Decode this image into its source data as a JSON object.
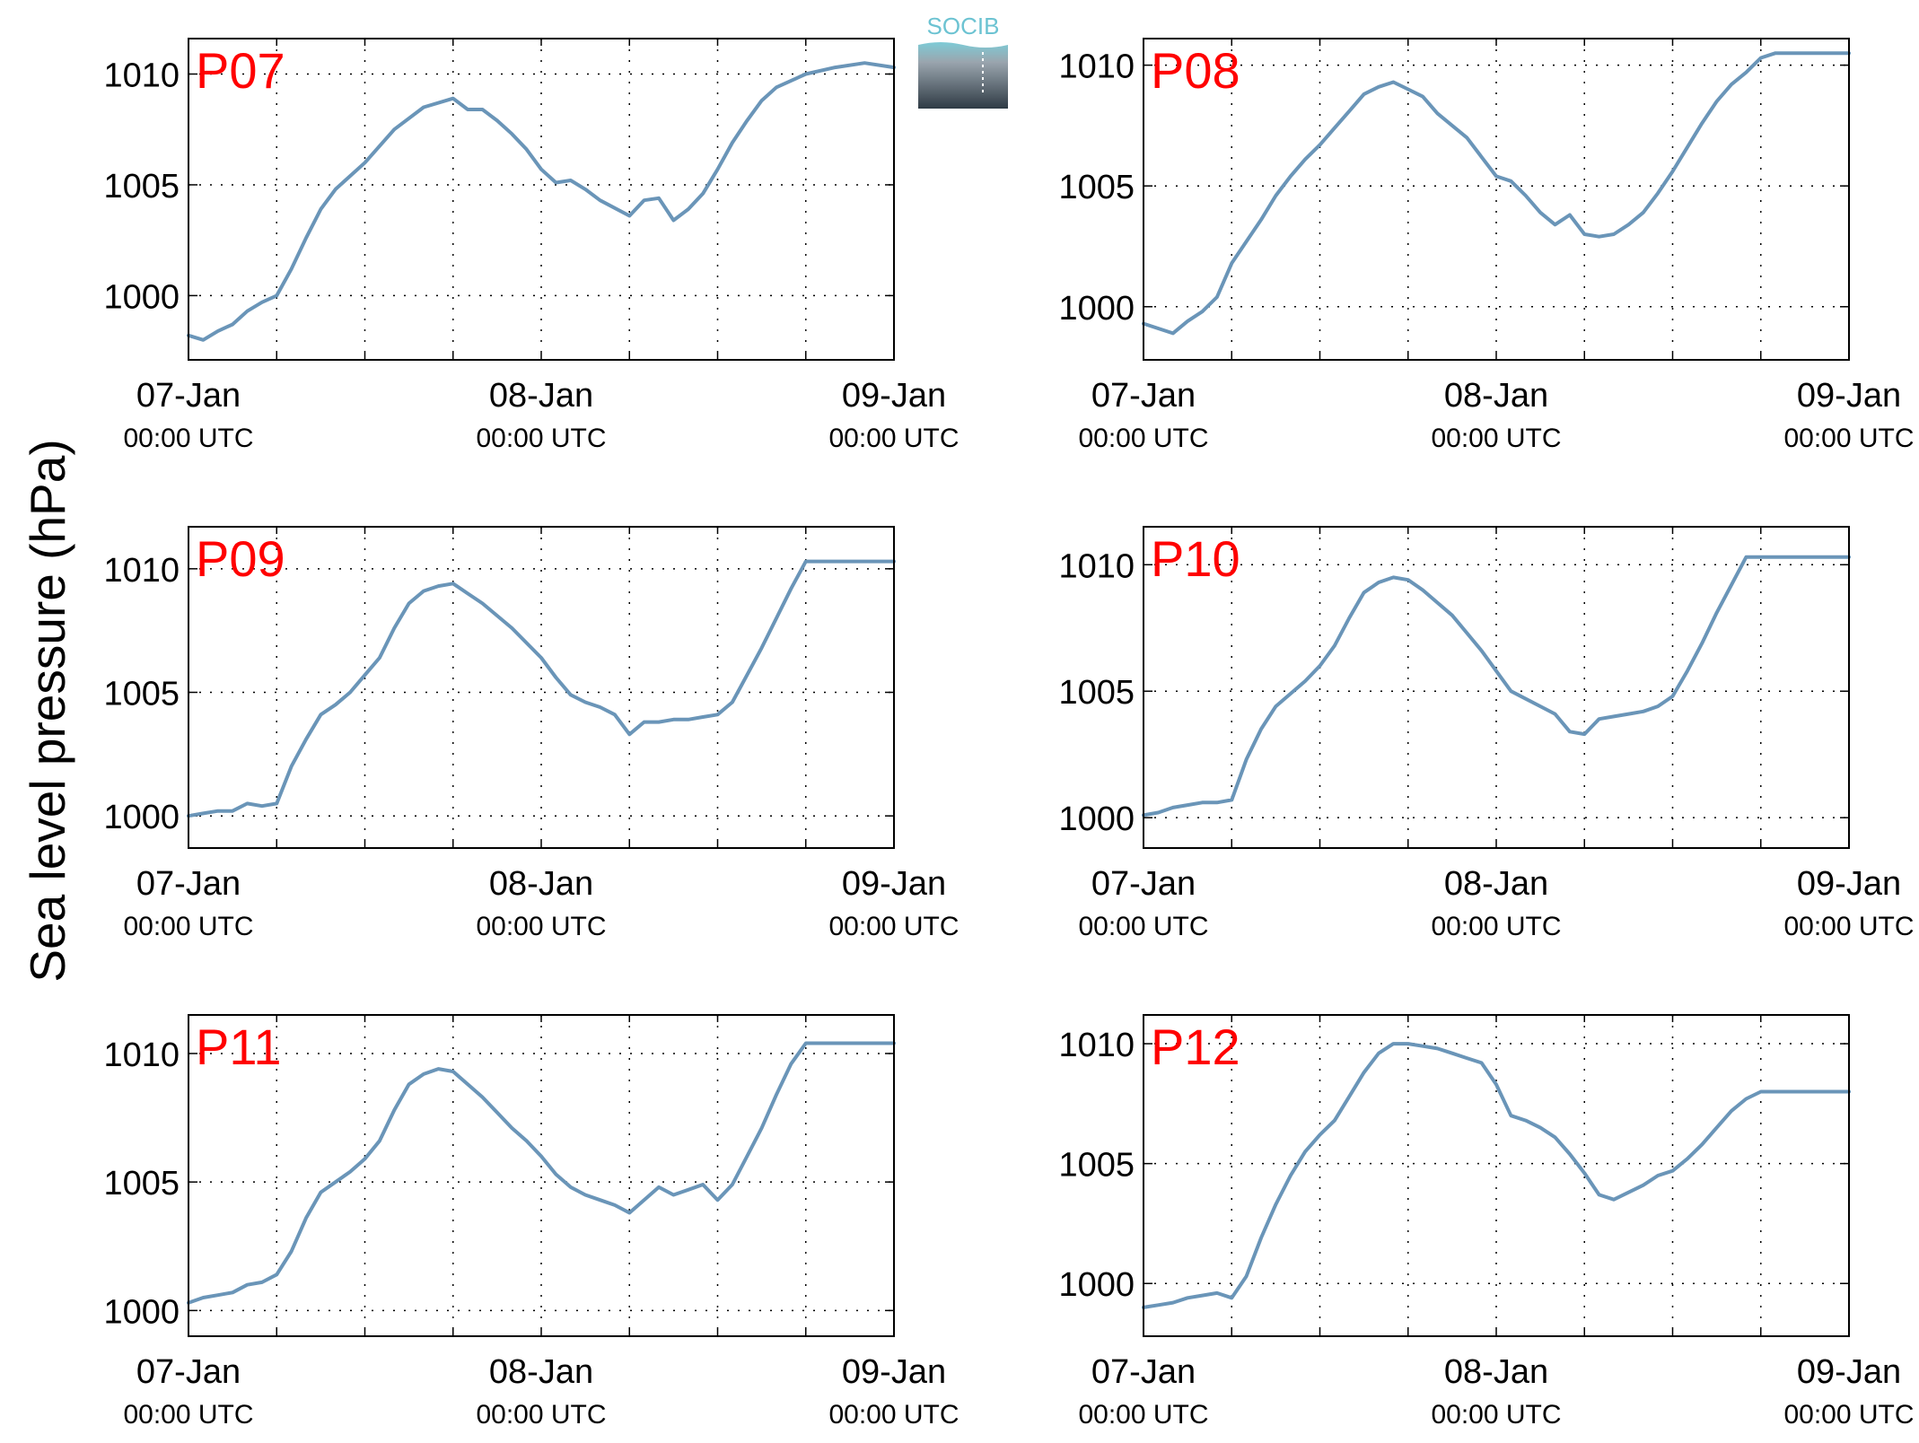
{
  "figure": {
    "ylabel": "Sea level pressure (hPa)",
    "logo_text": "SOCIB",
    "line_color": "#6a95b8",
    "label_color": "#ff0000"
  },
  "chart_data": [
    {
      "type": "line",
      "panel_label": "P07",
      "x_ticks": [
        "07-Jan\n00:00 UTC",
        "08-Jan\n00:00 UTC",
        "09-Jan\n00:00 UTC"
      ],
      "xlim_hours": [
        0,
        48
      ],
      "ylim": [
        997.1,
        1011.6
      ],
      "y_ticks": [
        1000,
        1005,
        1010
      ],
      "grid": true,
      "x_hours": [
        0,
        1,
        2,
        3,
        4,
        5,
        6,
        7,
        8,
        9,
        10,
        11,
        12,
        14,
        16,
        18,
        19,
        20,
        21,
        22,
        23,
        24,
        25,
        26,
        27,
        28,
        30,
        31,
        32,
        33,
        34,
        35,
        36,
        36.5,
        37,
        38,
        39,
        40,
        42,
        44,
        46,
        48
      ],
      "values": [
        998.2,
        998.0,
        998.4,
        998.7,
        999.3,
        999.7,
        1000.0,
        1001.2,
        1002.6,
        1003.9,
        1004.8,
        1005.4,
        1006.0,
        1007.5,
        1008.5,
        1008.9,
        1008.4,
        1008.4,
        1007.9,
        1007.3,
        1006.6,
        1005.7,
        1005.1,
        1005.2,
        1004.8,
        1004.3,
        1003.6,
        1004.3,
        1004.4,
        1003.4,
        1003.9,
        1004.6,
        1005.7,
        1006.3,
        1006.9,
        1007.9,
        1008.8,
        1009.4,
        1010.0,
        1010.3,
        1010.5,
        1010.3
      ]
    },
    {
      "type": "line",
      "panel_label": "P08",
      "x_ticks": [
        "07-Jan\n00:00 UTC",
        "08-Jan\n00:00 UTC",
        "09-Jan\n00:00 UTC"
      ],
      "xlim_hours": [
        0,
        48
      ],
      "ylim": [
        997.8,
        1011.1
      ],
      "y_ticks": [
        1000,
        1005,
        1010
      ],
      "grid": true,
      "x_hours": [
        0,
        1,
        2,
        3,
        4,
        5,
        6,
        7,
        8,
        9,
        10,
        11,
        12,
        13,
        14,
        15,
        16,
        17,
        18,
        19,
        20,
        21,
        22,
        23,
        24,
        25,
        26,
        27,
        28,
        29,
        30,
        31,
        32,
        33,
        34,
        35,
        36,
        37,
        38,
        39,
        40,
        41,
        42,
        43,
        44,
        45,
        46,
        47,
        48
      ],
      "values": [
        999.3,
        999.1,
        998.9,
        999.4,
        999.8,
        1000.4,
        1001.8,
        1002.7,
        1003.6,
        1004.6,
        1005.4,
        1006.1,
        1006.7,
        1007.4,
        1008.1,
        1008.8,
        1009.1,
        1009.3,
        1009.0,
        1008.7,
        1008.0,
        1007.5,
        1007.0,
        1006.2,
        1005.4,
        1005.2,
        1004.6,
        1003.9,
        1003.4,
        1003.8,
        1003.0,
        1002.9,
        1003.0,
        1003.4,
        1003.9,
        1004.7,
        1005.6,
        1006.6,
        1007.6,
        1008.5,
        1009.2,
        1009.7,
        1010.3,
        1010.5,
        1010.5,
        1010.5,
        1010.5,
        1010.5,
        1010.5
      ]
    },
    {
      "type": "line",
      "panel_label": "P09",
      "x_ticks": [
        "07-Jan\n00:00 UTC",
        "08-Jan\n00:00 UTC",
        "09-Jan\n00:00 UTC"
      ],
      "xlim_hours": [
        0,
        48
      ],
      "ylim": [
        998.7,
        1011.7
      ],
      "y_ticks": [
        1000,
        1005,
        1010
      ],
      "grid": true,
      "x_hours": [
        0,
        1,
        2,
        3,
        4,
        5,
        6,
        7,
        8,
        9,
        10,
        11,
        12,
        13,
        14,
        15,
        16,
        17,
        18,
        19,
        20,
        21,
        22,
        23,
        24,
        25,
        26,
        27,
        28,
        29,
        30,
        31,
        32,
        33,
        34,
        35,
        36,
        37,
        38,
        39,
        40,
        41,
        42,
        43,
        44,
        45,
        46,
        47,
        48
      ],
      "values": [
        1000.0,
        1000.1,
        1000.2,
        1000.2,
        1000.5,
        1000.4,
        1000.5,
        1002.0,
        1003.1,
        1004.1,
        1004.5,
        1005.0,
        1005.7,
        1006.4,
        1007.6,
        1008.6,
        1009.1,
        1009.3,
        1009.4,
        1009.0,
        1008.6,
        1008.1,
        1007.6,
        1007.0,
        1006.4,
        1005.6,
        1004.9,
        1004.6,
        1004.4,
        1004.1,
        1003.3,
        1003.8,
        1003.8,
        1003.9,
        1003.9,
        1004.0,
        1004.1,
        1004.6,
        1005.7,
        1006.8,
        1008.0,
        1009.2,
        1010.3,
        1010.3,
        1010.3,
        1010.3,
        1010.3,
        1010.3,
        1010.3
      ]
    },
    {
      "type": "line",
      "panel_label": "P10",
      "x_ticks": [
        "07-Jan\n00:00 UTC",
        "08-Jan\n00:00 UTC",
        "09-Jan\n00:00 UTC"
      ],
      "xlim_hours": [
        0,
        48
      ],
      "ylim": [
        998.8,
        1011.5
      ],
      "y_ticks": [
        1000,
        1005,
        1010
      ],
      "grid": true,
      "x_hours": [
        0,
        1,
        2,
        3,
        4,
        5,
        6,
        7,
        8,
        9,
        10,
        11,
        12,
        13,
        14,
        15,
        16,
        17,
        18,
        19,
        20,
        21,
        22,
        23,
        24,
        25,
        26,
        27,
        28,
        29,
        30,
        31,
        32,
        33,
        34,
        35,
        36,
        37,
        38,
        39,
        40,
        41,
        42,
        43,
        44,
        45,
        46,
        47,
        48
      ],
      "values": [
        1000.1,
        1000.2,
        1000.4,
        1000.5,
        1000.6,
        1000.6,
        1000.7,
        1002.3,
        1003.5,
        1004.4,
        1004.9,
        1005.4,
        1006.0,
        1006.8,
        1007.9,
        1008.9,
        1009.3,
        1009.5,
        1009.4,
        1009.0,
        1008.5,
        1008.0,
        1007.3,
        1006.6,
        1005.8,
        1005.0,
        1004.7,
        1004.4,
        1004.1,
        1003.4,
        1003.3,
        1003.9,
        1004.0,
        1004.1,
        1004.2,
        1004.4,
        1004.8,
        1005.8,
        1006.9,
        1008.1,
        1009.2,
        1010.3,
        1010.3,
        1010.3,
        1010.3,
        1010.3,
        1010.3,
        1010.3,
        1010.3
      ]
    },
    {
      "type": "line",
      "panel_label": "P11",
      "x_ticks": [
        "07-Jan\n00:00 UTC",
        "08-Jan\n00:00 UTC",
        "09-Jan\n00:00 UTC"
      ],
      "xlim_hours": [
        0,
        48
      ],
      "ylim": [
        999.0,
        1011.5
      ],
      "y_ticks": [
        1000,
        1005,
        1010
      ],
      "grid": true,
      "x_hours": [
        0,
        1,
        2,
        3,
        4,
        5,
        6,
        7,
        8,
        9,
        10,
        11,
        12,
        13,
        14,
        15,
        16,
        17,
        18,
        19,
        20,
        21,
        22,
        23,
        24,
        25,
        26,
        27,
        28,
        29,
        30,
        31,
        32,
        33,
        34,
        35,
        36,
        37,
        38,
        39,
        40,
        41,
        42,
        43,
        44,
        45,
        46,
        47,
        48
      ],
      "values": [
        1000.3,
        1000.5,
        1000.6,
        1000.7,
        1001.0,
        1001.1,
        1001.4,
        1002.3,
        1003.6,
        1004.6,
        1005.0,
        1005.4,
        1005.9,
        1006.6,
        1007.8,
        1008.8,
        1009.2,
        1009.4,
        1009.3,
        1008.8,
        1008.3,
        1007.7,
        1007.1,
        1006.6,
        1006.0,
        1005.3,
        1004.8,
        1004.5,
        1004.3,
        1004.1,
        1003.8,
        1004.3,
        1004.8,
        1004.5,
        1004.7,
        1004.9,
        1004.3,
        1004.9,
        1006.0,
        1007.1,
        1008.4,
        1009.6,
        1010.4,
        1010.4,
        1010.4,
        1010.4,
        1010.4,
        1010.4,
        1010.4
      ]
    },
    {
      "type": "line",
      "panel_label": "P12",
      "x_ticks": [
        "07-Jan\n00:00 UTC",
        "08-Jan\n00:00 UTC",
        "09-Jan\n00:00 UTC"
      ],
      "xlim_hours": [
        0,
        48
      ],
      "ylim": [
        997.8,
        1011.2
      ],
      "y_ticks": [
        1000,
        1005,
        1010
      ],
      "grid": true,
      "x_hours": [
        0,
        1,
        2,
        3,
        4,
        5,
        6,
        7,
        8,
        9,
        10,
        11,
        12,
        13,
        14,
        15,
        16,
        17,
        18,
        19,
        20,
        21,
        22,
        23,
        24,
        25,
        26,
        27,
        28,
        29,
        30,
        31,
        32,
        33,
        34,
        35,
        36,
        37,
        38,
        39,
        40,
        41,
        42,
        43,
        44,
        45,
        46,
        47,
        48
      ],
      "values": [
        999.0,
        999.1,
        999.2,
        999.4,
        999.5,
        999.6,
        999.4,
        1000.3,
        1001.9,
        1003.3,
        1004.5,
        1005.5,
        1006.2,
        1006.8,
        1007.8,
        1008.8,
        1009.6,
        1010.0,
        1010.0,
        1009.9,
        1009.8,
        1009.6,
        1009.4,
        1009.2,
        1008.3,
        1007.0,
        1006.8,
        1006.5,
        1006.1,
        1005.4,
        1004.6,
        1003.7,
        1003.5,
        1003.8,
        1004.1,
        1004.5,
        1004.7,
        1005.2,
        1005.8,
        1006.5,
        1007.2,
        1007.7,
        1008.0,
        1008.0,
        1008.0,
        1008.0,
        1008.0,
        1008.0,
        1008.0
      ]
    }
  ]
}
